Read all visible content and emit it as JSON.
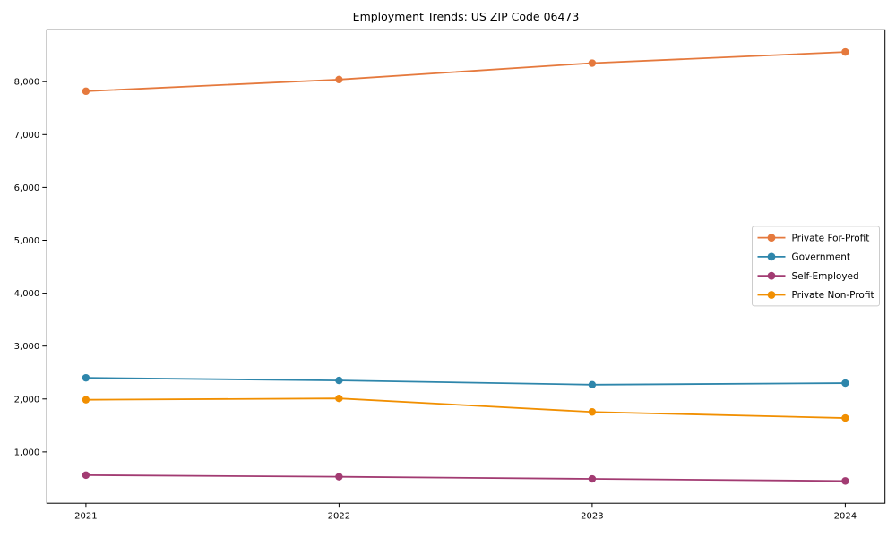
{
  "figure": {
    "background": "#ffffff",
    "axis_color": "#000000"
  },
  "chart_data": {
    "type": "line",
    "title": "Employment Trends: US ZIP Code 06473",
    "xlabel": "",
    "ylabel": "",
    "x": [
      "2021",
      "2022",
      "2023",
      "2024"
    ],
    "series": [
      {
        "name": "Private For-Profit",
        "color": "#E5793D",
        "values": [
          7820,
          8040,
          8350,
          8560
        ]
      },
      {
        "name": "Government",
        "color": "#2E86AB",
        "values": [
          2400,
          2350,
          2270,
          2300
        ]
      },
      {
        "name": "Self-Employed",
        "color": "#A23B72",
        "values": [
          560,
          530,
          490,
          450
        ]
      },
      {
        "name": "Private Non-Profit",
        "color": "#F18F01",
        "values": [
          1985,
          2010,
          1755,
          1640
        ]
      }
    ],
    "ylim": [
      30,
      8980
    ],
    "yticks": [
      1000,
      2000,
      3000,
      4000,
      5000,
      6000,
      7000,
      8000
    ],
    "ytick_labels": [
      "1,000",
      "2,000",
      "3,000",
      "4,000",
      "5,000",
      "6,000",
      "7,000",
      "8,000"
    ],
    "marker": "circle",
    "grid": false,
    "legend_position": "center right",
    "legend_border_color": "#cccccc",
    "legend_background": "#ffffff"
  }
}
